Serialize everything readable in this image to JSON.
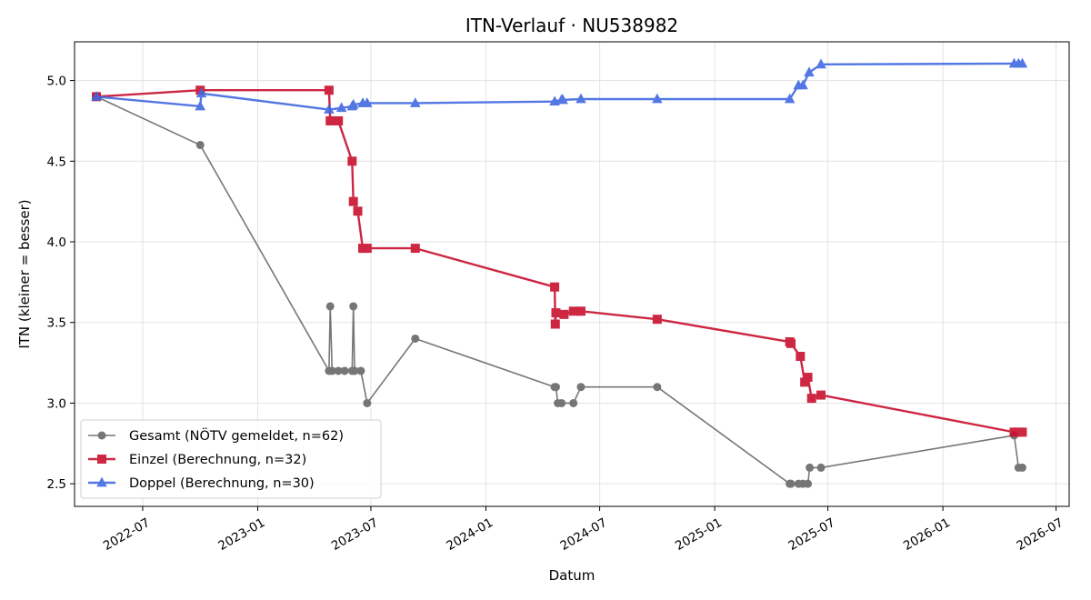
{
  "chart_data": {
    "type": "line",
    "title": "ITN-Verlauf · NU538982",
    "xlabel": "Datum",
    "ylabel": "ITN  (kleiner = besser)",
    "xlim": [
      "2022-03-14",
      "2026-07-22"
    ],
    "ylim": [
      2.36,
      5.24
    ],
    "x_ticks": [
      "2022-07",
      "2023-01",
      "2023-07",
      "2024-01",
      "2024-07",
      "2025-01",
      "2025-07",
      "2026-01",
      "2026-07"
    ],
    "y_ticks": [
      "2.5",
      "3.0",
      "3.5",
      "4.0",
      "4.5",
      "5.0"
    ],
    "grid": true,
    "legend_position": "lower-left",
    "series": [
      {
        "name": "Gesamt (NÖTV gemeldet, n=62)",
        "color": "#555555",
        "marker": "circle",
        "points": [
          {
            "x": "2022-04-18",
            "y": 4.9
          },
          {
            "x": "2022-10-01",
            "y": 4.6
          },
          {
            "x": "2023-04-25",
            "y": 3.2
          },
          {
            "x": "2023-04-27",
            "y": 3.6
          },
          {
            "x": "2023-04-30",
            "y": 3.2
          },
          {
            "x": "2023-05-10",
            "y": 3.2
          },
          {
            "x": "2023-05-20",
            "y": 3.2
          },
          {
            "x": "2023-06-01",
            "y": 3.2
          },
          {
            "x": "2023-06-03",
            "y": 3.6
          },
          {
            "x": "2023-06-05",
            "y": 3.2
          },
          {
            "x": "2023-06-15",
            "y": 3.2
          },
          {
            "x": "2023-06-25",
            "y": 3.0
          },
          {
            "x": "2023-09-10",
            "y": 3.4
          },
          {
            "x": "2024-04-20",
            "y": 3.1
          },
          {
            "x": "2024-04-22",
            "y": 3.1
          },
          {
            "x": "2024-04-25",
            "y": 3.0
          },
          {
            "x": "2024-05-01",
            "y": 3.0
          },
          {
            "x": "2024-05-20",
            "y": 3.0
          },
          {
            "x": "2024-06-01",
            "y": 3.1
          },
          {
            "x": "2024-10-01",
            "y": 3.1
          },
          {
            "x": "2025-05-01",
            "y": 2.5
          },
          {
            "x": "2025-05-03",
            "y": 2.5
          },
          {
            "x": "2025-05-15",
            "y": 2.5
          },
          {
            "x": "2025-05-22",
            "y": 2.5
          },
          {
            "x": "2025-05-30",
            "y": 2.5
          },
          {
            "x": "2025-06-02",
            "y": 2.6
          },
          {
            "x": "2025-06-20",
            "y": 2.6
          },
          {
            "x": "2026-04-25",
            "y": 2.8
          },
          {
            "x": "2026-05-02",
            "y": 2.6
          },
          {
            "x": "2026-05-08",
            "y": 2.6
          }
        ]
      },
      {
        "name": "Einzel (Berechnung, n=32)",
        "color": "#c8102e",
        "marker": "square",
        "points": [
          {
            "x": "2022-04-18",
            "y": 4.9
          },
          {
            "x": "2022-10-01",
            "y": 4.94
          },
          {
            "x": "2023-04-25",
            "y": 4.94
          },
          {
            "x": "2023-04-27",
            "y": 4.75
          },
          {
            "x": "2023-05-10",
            "y": 4.75
          },
          {
            "x": "2023-06-01",
            "y": 4.5
          },
          {
            "x": "2023-06-03",
            "y": 4.25
          },
          {
            "x": "2023-06-10",
            "y": 4.19
          },
          {
            "x": "2023-06-18",
            "y": 3.96
          },
          {
            "x": "2023-06-25",
            "y": 3.96
          },
          {
            "x": "2023-09-10",
            "y": 3.96
          },
          {
            "x": "2024-04-20",
            "y": 3.72
          },
          {
            "x": "2024-04-21",
            "y": 3.49
          },
          {
            "x": "2024-04-22",
            "y": 3.56
          },
          {
            "x": "2024-05-05",
            "y": 3.55
          },
          {
            "x": "2024-05-20",
            "y": 3.57
          },
          {
            "x": "2024-06-01",
            "y": 3.57
          },
          {
            "x": "2024-10-01",
            "y": 3.52
          },
          {
            "x": "2025-05-01",
            "y": 3.38
          },
          {
            "x": "2025-05-03",
            "y": 3.37
          },
          {
            "x": "2025-05-18",
            "y": 3.29
          },
          {
            "x": "2025-05-25",
            "y": 3.13
          },
          {
            "x": "2025-05-30",
            "y": 3.16
          },
          {
            "x": "2025-06-05",
            "y": 3.03
          },
          {
            "x": "2025-06-20",
            "y": 3.05
          },
          {
            "x": "2026-04-25",
            "y": 2.82
          },
          {
            "x": "2026-05-02",
            "y": 2.82
          },
          {
            "x": "2026-05-08",
            "y": 2.82
          }
        ]
      },
      {
        "name": "Doppel (Berechnung, n=30)",
        "color": "#4169e1",
        "marker": "triangle",
        "points": [
          {
            "x": "2022-04-18",
            "y": 4.9
          },
          {
            "x": "2022-10-01",
            "y": 4.84
          },
          {
            "x": "2022-10-03",
            "y": 4.92
          },
          {
            "x": "2023-04-25",
            "y": 4.82
          },
          {
            "x": "2023-05-15",
            "y": 4.83
          },
          {
            "x": "2023-06-01",
            "y": 4.84
          },
          {
            "x": "2023-06-03",
            "y": 4.85
          },
          {
            "x": "2023-06-18",
            "y": 4.86
          },
          {
            "x": "2023-06-25",
            "y": 4.86
          },
          {
            "x": "2023-09-10",
            "y": 4.86
          },
          {
            "x": "2024-04-20",
            "y": 4.87
          },
          {
            "x": "2024-05-01",
            "y": 4.88
          },
          {
            "x": "2024-05-03",
            "y": 4.88
          },
          {
            "x": "2024-06-01",
            "y": 4.885
          },
          {
            "x": "2024-10-01",
            "y": 4.885
          },
          {
            "x": "2025-05-01",
            "y": 4.885
          },
          {
            "x": "2025-05-15",
            "y": 4.97
          },
          {
            "x": "2025-05-22",
            "y": 4.97
          },
          {
            "x": "2025-06-01",
            "y": 5.05
          },
          {
            "x": "2025-06-20",
            "y": 5.1
          },
          {
            "x": "2026-04-25",
            "y": 5.105
          },
          {
            "x": "2026-05-02",
            "y": 5.105
          },
          {
            "x": "2026-05-08",
            "y": 5.105
          }
        ]
      }
    ]
  }
}
